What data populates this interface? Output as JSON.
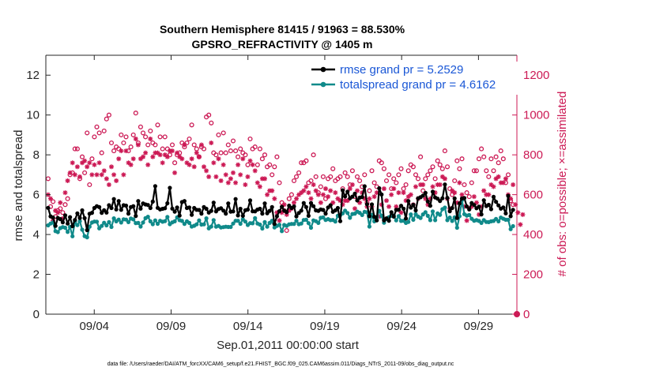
{
  "colors": {
    "rmse": "#000000",
    "spread": "#108a8a",
    "obs": "#cc1a55",
    "legend_text": "#1a57d6",
    "axis": "#262626"
  },
  "chart_data": {
    "type": "line",
    "title": "Southern Hemisphere 81415 / 91963 = 88.530%",
    "subtitle": "GPSRO_REFRACTIVITY @ 1405 m",
    "xlabel": "Sep.01,2011 00:00:00 start",
    "ylabel_left": "rmse and totalspread",
    "ylabel_right": "# of obs: o=possible; ×=assimilated",
    "xlim": [
      0.85,
      31.5
    ],
    "ylim_left": [
      0,
      13
    ],
    "ylim_right": [
      0,
      1300
    ],
    "x_ticks": [
      {
        "x": 4,
        "label": "09/04"
      },
      {
        "x": 9,
        "label": "09/09"
      },
      {
        "x": 14,
        "label": "09/14"
      },
      {
        "x": 19,
        "label": "09/19"
      },
      {
        "x": 24,
        "label": "09/24"
      },
      {
        "x": 29,
        "label": "09/29"
      }
    ],
    "y_ticks_left": [
      "0",
      "2",
      "4",
      "6",
      "8",
      "10",
      "12"
    ],
    "y_ticks_right": [
      "0",
      "200",
      "400",
      "600",
      "800",
      "1000",
      "1200"
    ],
    "legend": [
      "rmse grand pr = 5.2529",
      "totalspread grand pr = 4.6162"
    ],
    "series": [
      {
        "name": "rmse",
        "marker": "dot",
        "values": [
          5.34,
          4.91,
          4.85,
          4.43,
          4.83,
          4.77,
          4.61,
          4.96,
          4.55,
          4.87,
          4.42,
          4.73,
          5.06,
          4.83,
          5.21,
          4.82,
          4.22,
          5.04,
          5.09,
          5.33,
          5.42,
          5.38,
          5.09,
          5.22,
          5.1,
          5.47,
          5.33,
          5.78,
          5.26,
          5.68,
          5.24,
          5.47,
          5.45,
          5.05,
          5.38,
          5.42,
          4.93,
          5.68,
          5.3,
          5.56,
          5.51,
          5.48,
          5.33,
          5.65,
          6.43,
          5.34,
          5.26,
          5.29,
          5.32,
          5.57,
          6.34,
          5.3,
          5.15,
          5.36,
          4.95,
          5.63,
          5.68,
          5.33,
          5.36,
          4.99,
          5.33,
          5.24,
          5.23,
          5.05,
          5.38,
          5.29,
          5.1,
          5.19,
          5.6,
          5.16,
          5.28,
          5.32,
          5.2,
          5.05,
          5.56,
          5.15,
          5.16,
          5.78,
          4.96,
          5.29,
          4.94,
          5.22,
          5.25,
          5.71,
          5.17,
          5.16,
          5.25,
          5.29,
          5.05,
          5.56,
          5.07,
          5.19,
          5.38,
          4.53,
          4.92,
          5.17,
          5.39,
          5.2,
          5.12,
          5.45,
          5.33,
          5.41,
          4.91,
          5.08,
          5.2,
          5.58,
          5.38,
          4.94,
          5.58,
          5.42,
          5.21,
          5.19,
          5.26,
          5.23,
          5.05,
          5.36,
          5.47,
          5.14,
          5.21,
          5.33,
          4.67,
          6.22,
          5.91,
          6.15,
          5.82,
          5.9,
          6.05,
          5.71,
          5.85,
          5.88,
          6.42,
          5.52,
          4.92,
          5.51,
          4.89,
          4.71,
          6.32,
          6.01,
          4.71,
          4.81,
          4.69,
          5.12,
          4.9,
          5.24,
          5.24,
          5.44,
          5.3,
          4.8,
          5.68,
          5.35,
          5.49,
          5.21,
          5.82,
          5.87,
          5.95,
          6.09,
          5.66,
          5.44,
          6.15,
          5.86,
          5.8,
          5.68,
          5.82,
          6.51,
          5.84,
          5.17,
          5.33,
          5.81,
          4.83,
          5.56,
          5.81,
          5.83,
          5.41,
          5.26,
          5.58,
          5.48,
          5.32,
          5.4,
          5.01,
          5.72,
          5.43,
          5.49,
          5.27,
          5.89,
          5.64,
          5.46,
          5.3,
          5.36,
          5.06,
          5.94,
          4.92,
          5.24
        ]
      },
      {
        "name": "totalspread",
        "marker": "dot",
        "values": [
          4.46,
          4.55,
          4.61,
          4.17,
          4.12,
          4.32,
          4.37,
          4.34,
          4.13,
          4.38,
          3.91,
          4.65,
          4.47,
          4.67,
          4.24,
          3.92,
          3.86,
          4.39,
          4.6,
          4.65,
          4.64,
          4.31,
          4.43,
          4.59,
          4.46,
          4.62,
          4.38,
          4.81,
          4.66,
          4.75,
          4.6,
          4.76,
          4.75,
          4.62,
          4.8,
          4.76,
          4.57,
          4.58,
          4.4,
          4.6,
          4.82,
          4.89,
          4.66,
          4.52,
          4.71,
          4.54,
          4.69,
          4.64,
          4.67,
          4.88,
          4.52,
          4.61,
          4.66,
          4.86,
          4.72,
          4.68,
          4.53,
          4.66,
          4.58,
          4.4,
          4.44,
          4.51,
          4.71,
          4.5,
          4.51,
          4.81,
          4.31,
          4.4,
          4.72,
          4.39,
          4.43,
          4.35,
          4.37,
          4.39,
          4.38,
          4.38,
          4.55,
          4.69,
          4.69,
          4.54,
          4.76,
          4.65,
          4.48,
          4.57,
          4.56,
          4.82,
          4.55,
          4.5,
          4.3,
          4.62,
          4.39,
          4.58,
          4.69,
          4.35,
          4.43,
          4.49,
          4.17,
          4.48,
          4.43,
          4.51,
          4.53,
          4.53,
          4.69,
          4.52,
          4.55,
          4.73,
          4.74,
          4.57,
          4.34,
          4.71,
          4.67,
          4.58,
          4.84,
          4.86,
          4.73,
          4.77,
          4.72,
          4.73,
          4.65,
          4.94,
          4.97,
          5.06,
          5.2,
          5.08,
          4.84,
          5.03,
          5.05,
          5.15,
          5.09,
          4.98,
          5.14,
          5.12,
          4.4,
          4.99,
          4.66,
          4.87,
          5.19,
          4.94,
          4.59,
          4.78,
          4.87,
          4.94,
          4.95,
          4.71,
          4.92,
          4.68,
          4.69,
          4.58,
          4.63,
          5.01,
          4.74,
          5.02,
          4.9,
          4.83,
          5.01,
          5.12,
          4.94,
          4.72,
          5.16,
          4.72,
          5.06,
          4.99,
          5.27,
          5.35,
          4.72,
          4.85,
          4.68,
          4.86,
          4.34,
          4.92,
          5.73,
          5.02,
          4.95,
          4.98,
          4.79,
          4.69,
          4.72,
          4.68,
          4.58,
          4.72,
          4.63,
          4.62,
          4.66,
          4.68,
          4.78,
          4.66,
          4.85,
          4.79,
          4.74,
          4.74,
          4.27,
          4.42
        ]
      },
      {
        "name": "possible",
        "marker": "circle",
        "axis": "right",
        "values": [
          680,
          540,
          565,
          490,
          520,
          530,
          510,
          550,
          580,
          700,
          710,
          830,
          830,
          680,
          790,
          710,
          910,
          650,
          780,
          890,
          940,
          910,
          810,
          920,
          980,
          1000,
          860,
          820,
          840,
          830,
          900,
          860,
          890,
          820,
          840,
          900,
          1010,
          860,
          940,
          910,
          890,
          850,
          920,
          860,
          850,
          950,
          890,
          830,
          890,
          830,
          800,
          850,
          760,
          800,
          810,
          860,
          840,
          860,
          880,
          950,
          850,
          830,
          790,
          840,
          830,
          990,
          1000,
          960,
          810,
          800,
          900,
          810,
          910,
          810,
          850,
          820,
          870,
          820,
          790,
          830,
          810,
          800,
          750,
          880,
          830,
          840,
          750,
          830,
          780,
          800,
          740,
          750,
          700,
          740,
          790,
          660,
          560,
          520,
          420,
          580,
          600,
          670,
          690,
          710,
          760,
          760,
          770,
          660,
          670,
          800,
          690,
          610,
          640,
          690,
          580,
          680,
          690,
          730,
          670,
          680,
          690,
          630,
          710,
          690,
          650,
          720,
          590,
          690,
          670,
          640,
          700,
          560,
          620,
          720,
          660,
          640,
          770,
          760,
          730,
          670,
          700,
          630,
          680,
          660,
          700,
          730,
          630,
          650,
          720,
          750,
          740,
          700,
          680,
          790,
          620,
          680,
          700,
          720,
          740,
          680,
          770,
          750,
          730,
          820,
          740,
          630,
          600,
          670,
          770,
          730,
          780,
          650,
          610,
          590,
          660,
          720,
          720,
          780,
          830,
          790,
          720,
          690,
          780,
          720,
          790,
          760,
          820,
          780,
          660,
          700,
          570,
          550
        ]
      },
      {
        "name": "assimilated",
        "marker": "star",
        "axis": "right",
        "values": [
          600,
          580,
          470,
          520,
          510,
          560,
          480,
          610,
          670,
          710,
          760,
          700,
          740,
          690,
          760,
          770,
          740,
          760,
          700,
          750,
          700,
          760,
          700,
          720,
          680,
          650,
          740,
          700,
          670,
          780,
          820,
          700,
          820,
          760,
          750,
          780,
          880,
          850,
          780,
          790,
          810,
          750,
          880,
          790,
          810,
          810,
          800,
          760,
          800,
          790,
          820,
          820,
          710,
          810,
          790,
          780,
          850,
          760,
          750,
          780,
          740,
          810,
          790,
          850,
          740,
          720,
          690,
          860,
          760,
          690,
          780,
          670,
          750,
          700,
          660,
          680,
          710,
          660,
          750,
          700,
          780,
          650,
          690,
          770,
          750,
          720,
          660,
          640,
          680,
          680,
          600,
          620,
          620,
          580,
          510,
          470,
          510,
          550,
          500,
          520,
          530,
          560,
          580,
          600,
          610,
          620,
          640,
          610,
          580,
          650,
          620,
          600,
          560,
          600,
          630,
          590,
          620,
          560,
          610,
          580,
          570,
          550,
          570,
          570,
          630,
          650,
          530,
          620,
          560,
          610,
          580,
          540,
          580,
          540,
          590,
          610,
          490,
          550,
          630,
          570,
          540,
          600,
          630,
          540,
          610,
          510,
          610,
          570,
          590,
          600,
          550,
          640,
          580,
          650,
          650,
          580,
          550,
          580,
          640,
          610,
          650,
          650,
          690,
          680,
          580,
          530,
          620,
          610,
          560,
          660,
          600,
          540,
          470,
          530,
          540,
          590,
          560,
          500,
          540,
          620,
          600,
          600,
          650,
          640,
          680,
          690,
          660,
          660,
          680,
          600,
          580,
          650,
          550,
          510,
          450,
          500
        ]
      },
      {
        "name": "final-marker",
        "marker": "dot",
        "axis": "right",
        "values": [
          0
        ]
      }
    ]
  },
  "footer": "data file: /Users/raeder/DAI/ATM_forcXX/CAM6_setup/f.e21.FHIST_BGC.f09_025.CAM6assim.011/Diags_NTrS_2011-09/obs_diag_output.nc"
}
